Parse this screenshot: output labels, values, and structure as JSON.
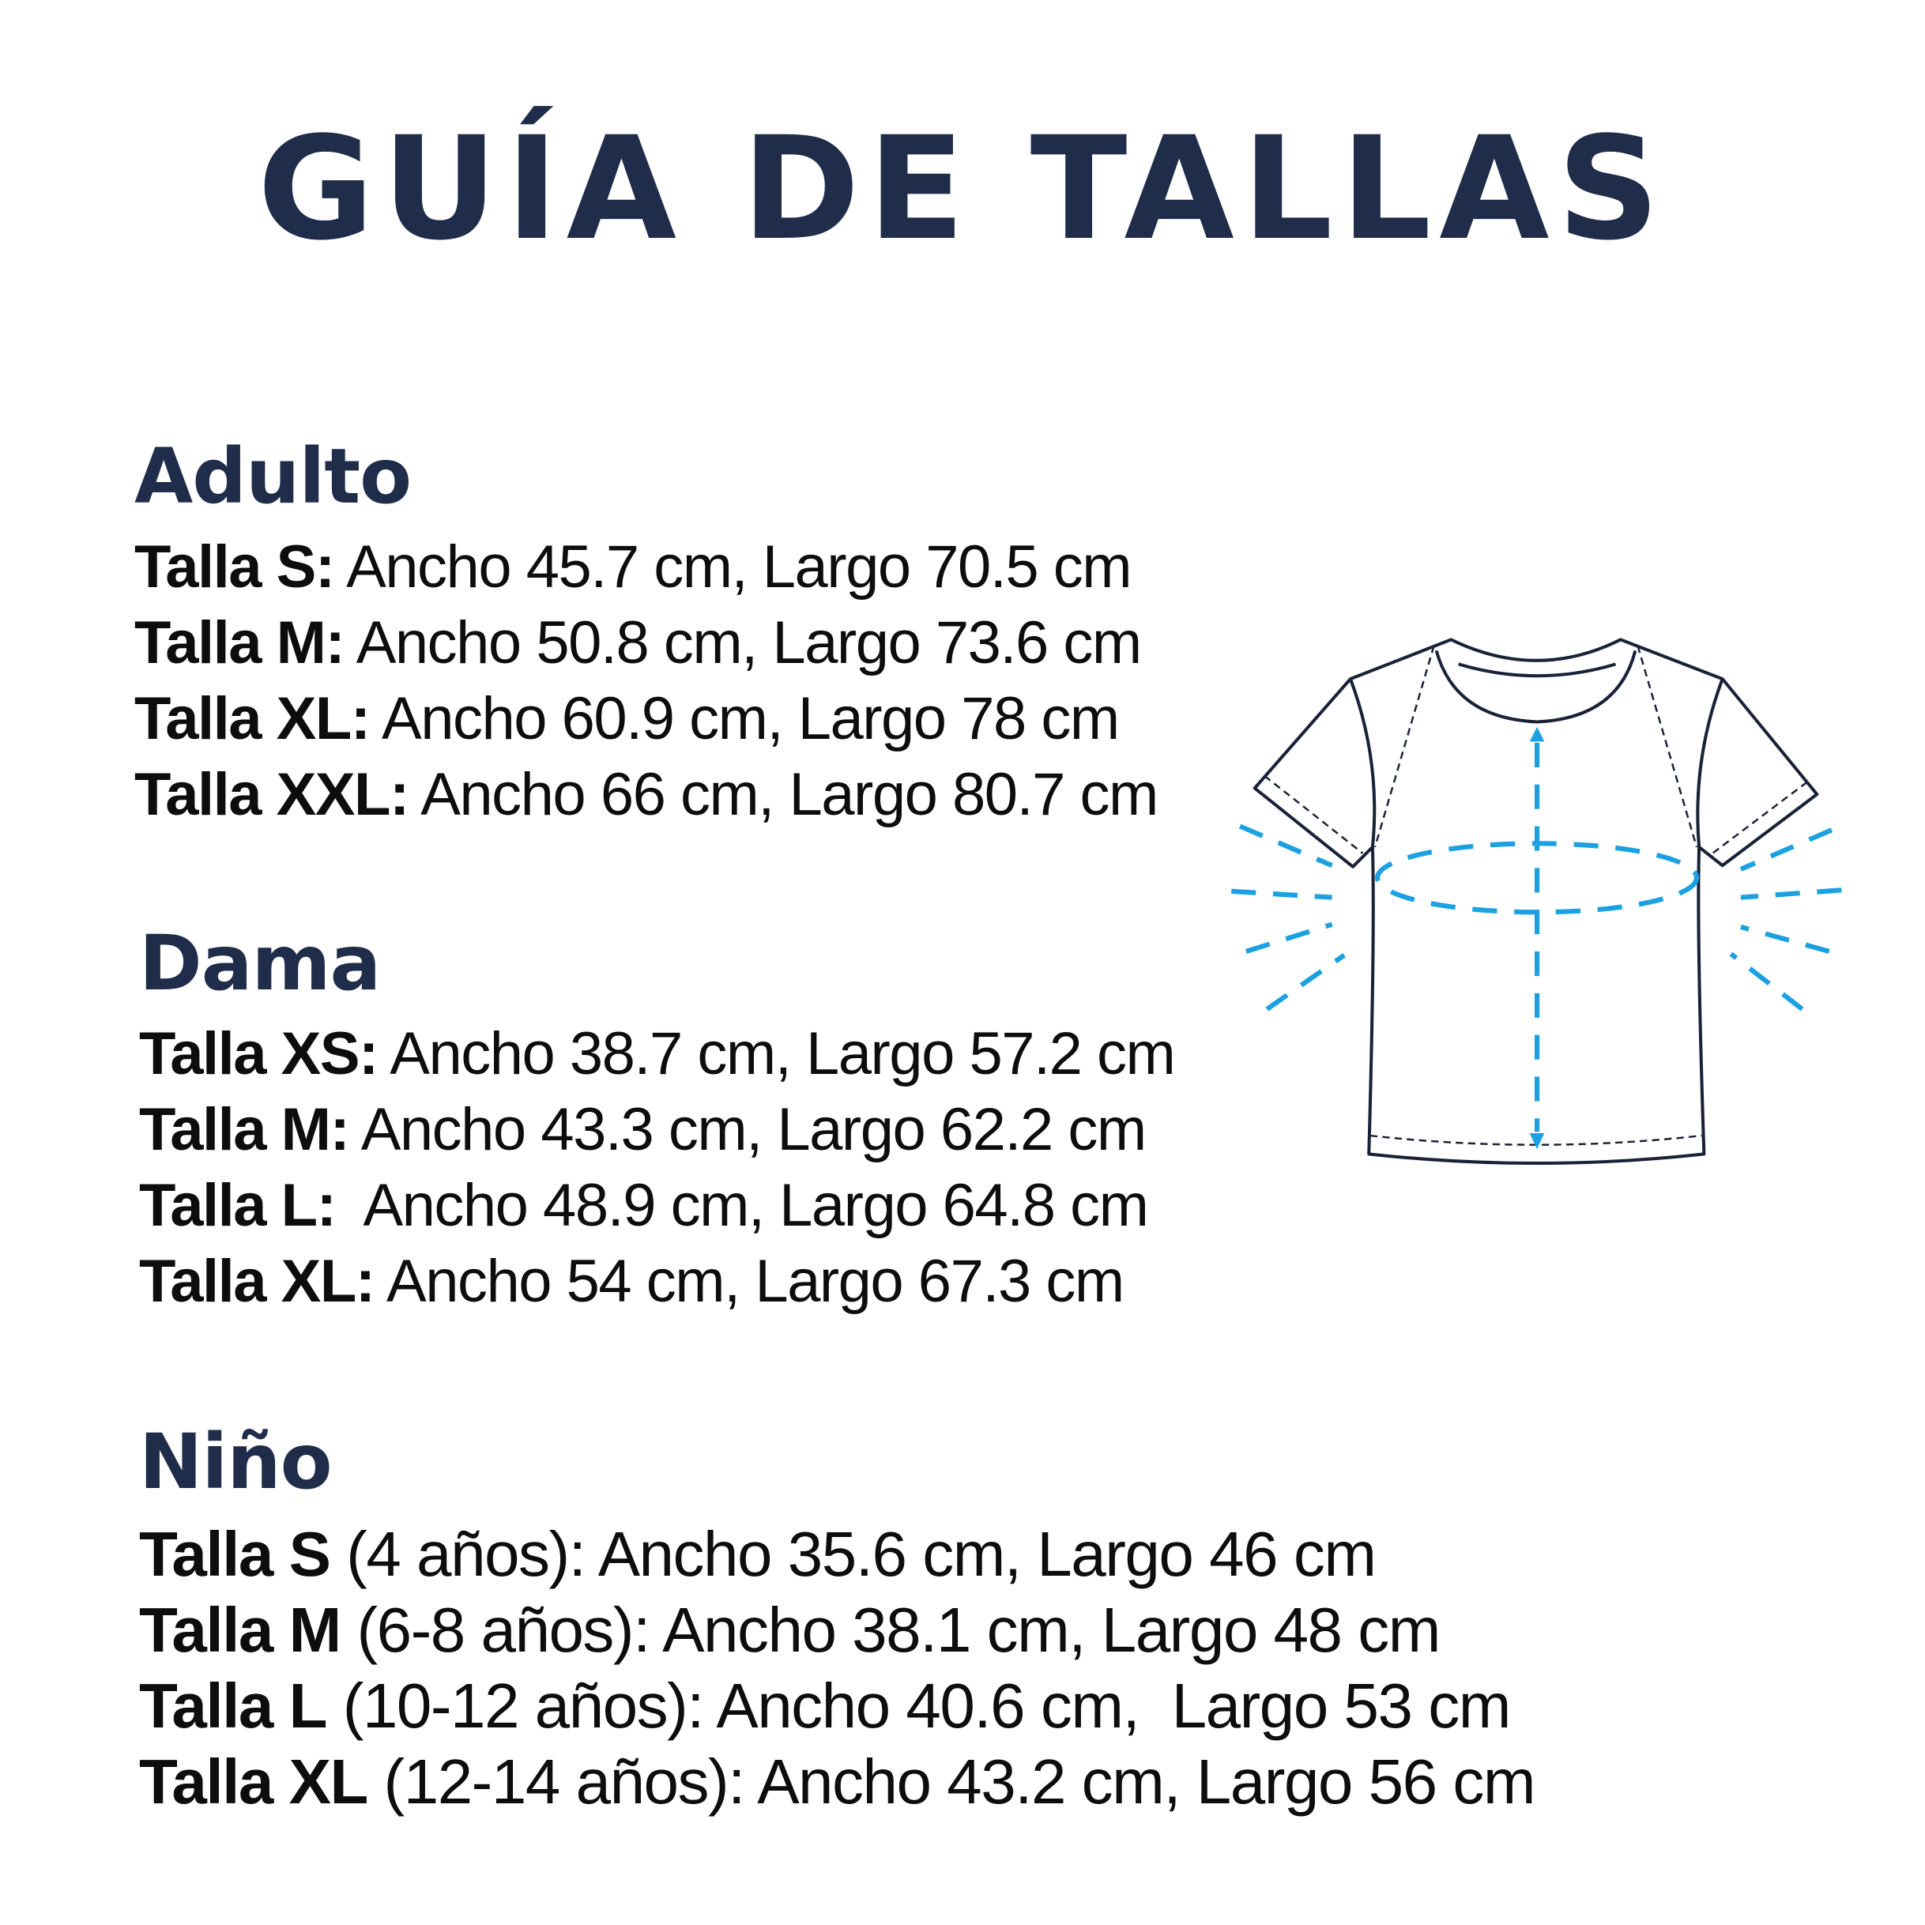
{
  "title": "GUÍA DE TALLAS",
  "sections": {
    "adulto": {
      "heading": "Adulto",
      "items": [
        {
          "label": "Talla S:",
          "text": " Ancho 45.7 cm, Largo 70.5 cm"
        },
        {
          "label": "Talla M:",
          "text": " Ancho 50.8 cm, Largo 73.6 cm"
        },
        {
          "label": "Talla XL:",
          "text": " Ancho 60.9 cm, Largo 78 cm"
        },
        {
          "label": "Talla XXL:",
          "text": " Ancho 66 cm, Largo 80.7 cm"
        }
      ]
    },
    "dama": {
      "heading": "Dama",
      "items": [
        {
          "label": "Talla XS:",
          "text": " Ancho 38.7 cm, Largo 57.2 cm"
        },
        {
          "label": "Talla M:",
          "text": " Ancho 43.3 cm, Largo 62.2 cm"
        },
        {
          "label": "Talla L:",
          "text": "  Ancho 48.9 cm, Largo 64.8 cm"
        },
        {
          "label": "Talla XL:",
          "text": " Ancho 54 cm, Largo 67.3 cm"
        }
      ]
    },
    "nino": {
      "heading": "Niño",
      "items": [
        {
          "label": "Talla S",
          "text": " (4 años): Ancho 35.6 cm, Largo 46 cm"
        },
        {
          "label": "Talla M",
          "text": " (6-8 años): Ancho 38.1 cm, Largo 48 cm"
        },
        {
          "label": "Talla L",
          "text": " (10-12 años): Ancho 40.6 cm,  Largo 53 cm"
        },
        {
          "label": "Talla XL",
          "text": " (12-14 años): Ancho 43.2 cm, Largo 56 cm"
        }
      ]
    }
  },
  "illustration": {
    "icon": "t-shirt-measurement-icon",
    "outline_color": "#1a2238",
    "measure_color": "#1ba1e2"
  },
  "colors": {
    "heading": "#1f2d4a",
    "text": "#0d0d0d",
    "background": "#ffffff"
  }
}
